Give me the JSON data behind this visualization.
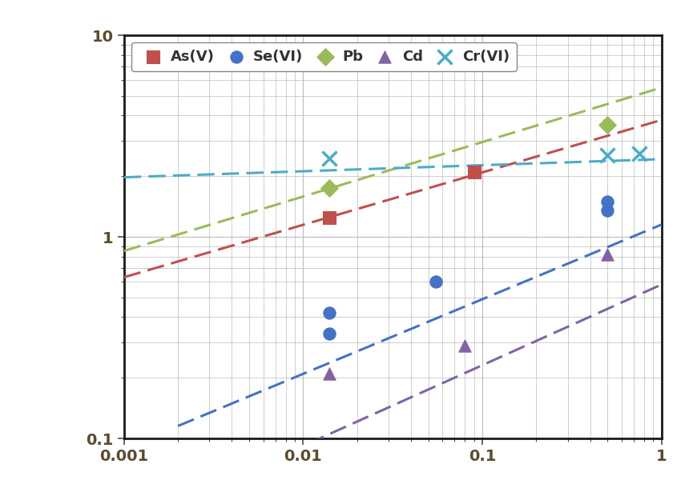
{
  "xlim": [
    0.001,
    1.0
  ],
  "ylim": [
    0.1,
    10.0
  ],
  "series": [
    {
      "name": "As(V)",
      "color": "#c0504d",
      "marker": "s",
      "markersize": 11,
      "data_points": [
        [
          0.014,
          1.25
        ],
        [
          0.09,
          2.1
        ]
      ],
      "freundlich_K": 3.8,
      "freundlich_n": 0.26,
      "line_xstart": 0.001,
      "line_xend": 1.0
    },
    {
      "name": "Se(VI)",
      "color": "#4472c4",
      "marker": "o",
      "markersize": 11,
      "data_points": [
        [
          0.014,
          0.42
        ],
        [
          0.014,
          0.33
        ],
        [
          0.055,
          0.6
        ],
        [
          0.5,
          1.35
        ],
        [
          0.5,
          1.5
        ]
      ],
      "freundlich_K": 1.15,
      "freundlich_n": 0.37,
      "line_xstart": 0.002,
      "line_xend": 1.0
    },
    {
      "name": "Pb",
      "color": "#9bbb59",
      "marker": "D",
      "markersize": 11,
      "data_points": [
        [
          0.014,
          1.75
        ],
        [
          0.5,
          3.6
        ]
      ],
      "freundlich_K": 5.5,
      "freundlich_n": 0.27,
      "line_xstart": 0.001,
      "line_xend": 1.0
    },
    {
      "name": "Cd",
      "color": "#8064a2",
      "marker": "^",
      "markersize": 11,
      "data_points": [
        [
          0.014,
          0.21
        ],
        [
          0.08,
          0.29
        ],
        [
          0.5,
          0.82
        ]
      ],
      "freundlich_K": 0.58,
      "freundlich_n": 0.4,
      "line_xstart": 0.006,
      "line_xend": 1.0
    },
    {
      "name": "Cr(VI)",
      "color": "#4bacc6",
      "marker": "x",
      "markersize": 13,
      "data_points": [
        [
          0.014,
          2.45
        ],
        [
          0.5,
          2.55
        ],
        [
          0.75,
          2.6
        ]
      ],
      "freundlich_K": 2.43,
      "freundlich_n": 0.03,
      "line_xstart": 0.001,
      "line_xend": 1.0
    }
  ],
  "background_color": "#ffffff",
  "legend_fontsize": 13,
  "tick_fontsize": 14,
  "tick_color": "#5c4a32",
  "spine_color": "#1a1a1a",
  "grid_color": "#bbbbbb",
  "figsize": [
    8.6,
    6.3
  ],
  "dpi": 100
}
